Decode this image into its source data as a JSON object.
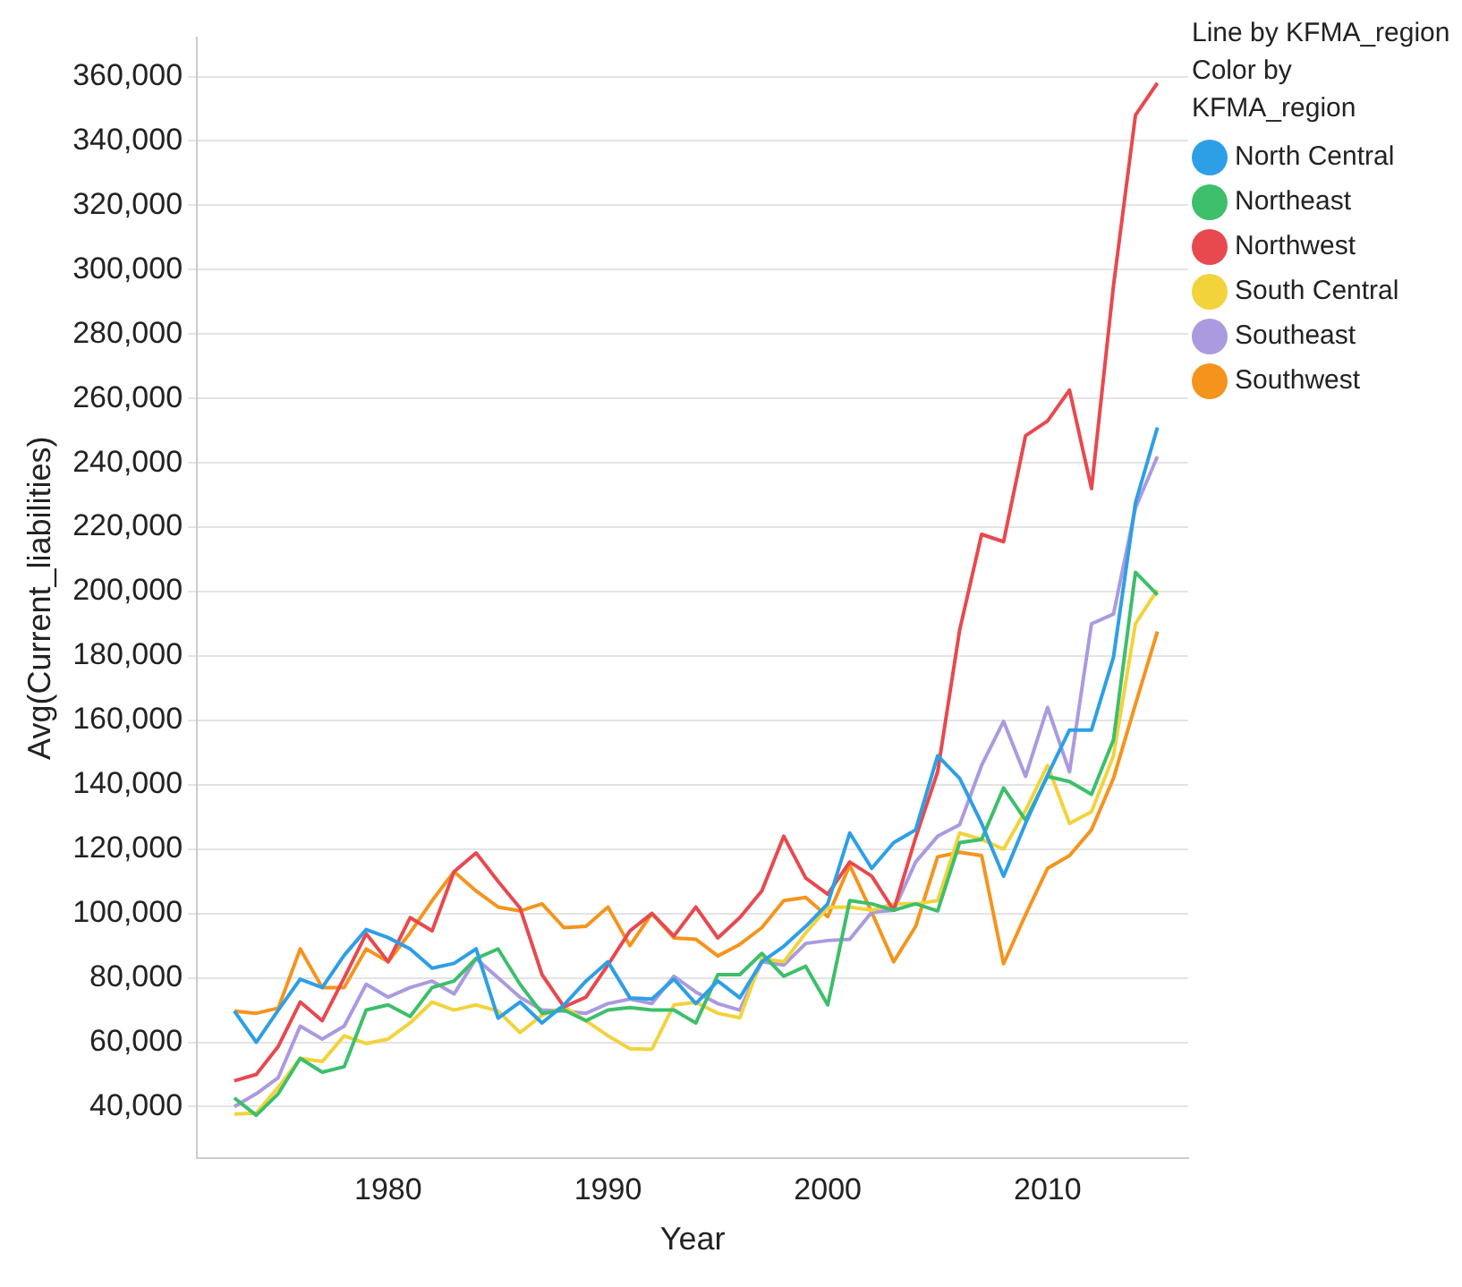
{
  "chart_data": {
    "type": "line",
    "xlabel": "Year",
    "ylabel": "Avg(Current_liabilities)",
    "legend_title": "Line by KFMA_region\nColor by KFMA_region",
    "x": [
      1973,
      1974,
      1975,
      1976,
      1977,
      1978,
      1979,
      1980,
      1981,
      1982,
      1983,
      1984,
      1985,
      1986,
      1987,
      1988,
      1989,
      1990,
      1991,
      1992,
      1993,
      1994,
      1995,
      1996,
      1997,
      1998,
      1999,
      2000,
      2001,
      2002,
      2003,
      2004,
      2005,
      2006,
      2007,
      2008,
      2009,
      2010,
      2011,
      2012,
      2013,
      2014,
      2015
    ],
    "series": [
      {
        "name": "North Central",
        "color": "#2d9fe6",
        "values": [
          69700,
          60000,
          70000,
          79600,
          77000,
          87000,
          95000,
          92500,
          89000,
          83000,
          84500,
          89000,
          67500,
          72500,
          66000,
          71600,
          79000,
          85000,
          73800,
          73400,
          79600,
          72000,
          79000,
          73800,
          85000,
          89800,
          96000,
          103000,
          125000,
          114000,
          122000,
          126000,
          149000,
          142000,
          128000,
          111600,
          128000,
          143000,
          157000,
          157000,
          179600,
          227600,
          251000
        ]
      },
      {
        "name": "Northeast",
        "color": "#3dbf6b",
        "values": [
          42700,
          37300,
          44000,
          55000,
          50700,
          52400,
          70000,
          71600,
          68000,
          77000,
          79000,
          86000,
          89000,
          78000,
          69000,
          70000,
          66700,
          70000,
          70800,
          70000,
          70000,
          66000,
          81000,
          81000,
          87600,
          80500,
          83600,
          71600,
          104000,
          103000,
          101000,
          103000,
          100800,
          122000,
          123000,
          139000,
          129000,
          142600,
          141000,
          137000,
          154000,
          206000,
          199000
        ]
      },
      {
        "name": "Northwest",
        "color": "#e8494f",
        "values": [
          48000,
          50000,
          58700,
          72500,
          66700,
          80000,
          93700,
          85000,
          98700,
          94600,
          113000,
          118800,
          110000,
          101700,
          81000,
          71000,
          74000,
          84000,
          94600,
          100000,
          93000,
          102000,
          92400,
          98700,
          107000,
          124000,
          111000,
          106000,
          116000,
          111600,
          101000,
          123600,
          144000,
          188000,
          217800,
          215500,
          248400,
          253000,
          262600,
          232000,
          295000,
          348000,
          358000
        ]
      },
      {
        "name": "South Central",
        "color": "#f2d33c",
        "values": [
          37700,
          38000,
          46000,
          55000,
          54000,
          62000,
          59600,
          61000,
          66000,
          72500,
          70000,
          71600,
          69700,
          63000,
          68400,
          71000,
          66700,
          62000,
          58000,
          57800,
          71600,
          72400,
          69000,
          67600,
          86000,
          85000,
          94000,
          101900,
          102000,
          101000,
          103000,
          103000,
          104000,
          125000,
          123000,
          120000,
          132000,
          146000,
          128000,
          131600,
          149000,
          190000,
          200500
        ]
      },
      {
        "name": "Southeast",
        "color": "#ab9ae0",
        "values": [
          40000,
          44000,
          49000,
          65000,
          61000,
          65000,
          78000,
          74000,
          77000,
          79000,
          75000,
          86000,
          80000,
          74000,
          70000,
          69700,
          69000,
          72000,
          73400,
          72000,
          80500,
          75600,
          72000,
          70000,
          85000,
          84000,
          90700,
          91600,
          92000,
          100400,
          101000,
          116000,
          124000,
          127600,
          146000,
          159700,
          142600,
          164000,
          144000,
          190000,
          193000,
          226000,
          242000
        ]
      },
      {
        "name": "Southwest",
        "color": "#f5941d",
        "values": [
          69700,
          69000,
          70600,
          89000,
          77000,
          77000,
          89000,
          85000,
          94000,
          104000,
          113000,
          107000,
          102000,
          100800,
          103000,
          95600,
          96000,
          102000,
          90000,
          100000,
          92400,
          92000,
          86800,
          90400,
          95600,
          104000,
          105000,
          99000,
          115000,
          100400,
          85000,
          96000,
          117600,
          119000,
          118000,
          84400,
          99600,
          114000,
          118000,
          126000,
          142000,
          165000,
          187600
        ]
      }
    ],
    "xlim": [
      1971.3,
      2016.4
    ],
    "xticks": [
      1980,
      1990,
      2000,
      2010
    ],
    "ylim": [
      24000,
      372000
    ],
    "yticks": [
      {
        "value": 40000,
        "label": "40,000"
      },
      {
        "value": 60000,
        "label": "60,000"
      },
      {
        "value": 80000,
        "label": "80,000"
      },
      {
        "value": 100000,
        "label": "100,000"
      },
      {
        "value": 120000,
        "label": "120,000"
      },
      {
        "value": 140000,
        "label": "140,000"
      },
      {
        "value": 160000,
        "label": "160,000"
      },
      {
        "value": 180000,
        "label": "180,000"
      },
      {
        "value": 200000,
        "label": "200,000"
      },
      {
        "value": 220000,
        "label": "220,000"
      },
      {
        "value": 240000,
        "label": "240,000"
      },
      {
        "value": 260000,
        "label": "260,000"
      },
      {
        "value": 280000,
        "label": "280,000"
      },
      {
        "value": 300000,
        "label": "300,000"
      },
      {
        "value": 320000,
        "label": "320,000"
      },
      {
        "value": 340000,
        "label": "340,000"
      },
      {
        "value": 360000,
        "label": "360,000"
      }
    ],
    "grid": "y",
    "legend": "top right",
    "marker": "none",
    "line_style": "solid"
  }
}
